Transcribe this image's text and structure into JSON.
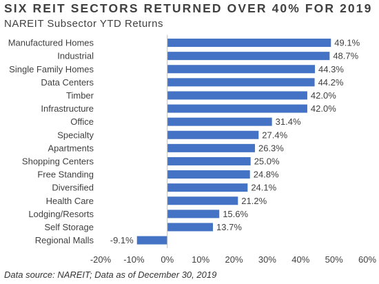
{
  "title": "SIX REIT SECTORS RETURNED OVER 40% FOR 2019",
  "subtitle": "NAREIT Subsector YTD Returns",
  "source": "Data source: NAREIT; Data as of December 30, 2019",
  "colors": {
    "bar": "#4472C4",
    "axis": "#BFBFBF",
    "text": "#404040"
  },
  "chart_data": {
    "type": "bar",
    "orientation": "horizontal",
    "title": "SIX REIT SECTORS RETURNED OVER 40% FOR 2019",
    "subtitle": "NAREIT Subsector YTD Returns",
    "categories": [
      "Manufactured Homes",
      "Industrial",
      "Single Family Homes",
      "Data Centers",
      "Timber",
      "Infrastructure",
      "Office",
      "Specialty",
      "Apartments",
      "Shopping Centers",
      "Free Standing",
      "Diversified",
      "Health Care",
      "Lodging/Resorts",
      "Self Storage",
      "Regional Malls"
    ],
    "values": [
      49.1,
      48.7,
      44.3,
      44.2,
      42.0,
      42.0,
      31.4,
      27.4,
      26.3,
      25.0,
      24.8,
      24.1,
      21.2,
      15.6,
      13.7,
      -9.1
    ],
    "data_labels": [
      "49.1%",
      "48.7%",
      "44.3%",
      "44.2%",
      "42.0%",
      "42.0%",
      "31.4%",
      "27.4%",
      "26.3%",
      "25.0%",
      "24.8%",
      "24.1%",
      "21.2%",
      "15.6%",
      "13.7%",
      "-9.1%"
    ],
    "xlim": [
      -20,
      60
    ],
    "xticks": [
      -20,
      -10,
      0,
      10,
      20,
      30,
      40,
      50,
      60
    ],
    "xtick_labels": [
      "-20%",
      "-10%",
      "0%",
      "10%",
      "20%",
      "30%",
      "40%",
      "50%",
      "60%"
    ],
    "xlabel": "",
    "ylabel": "",
    "grid": false,
    "legend": "none"
  }
}
